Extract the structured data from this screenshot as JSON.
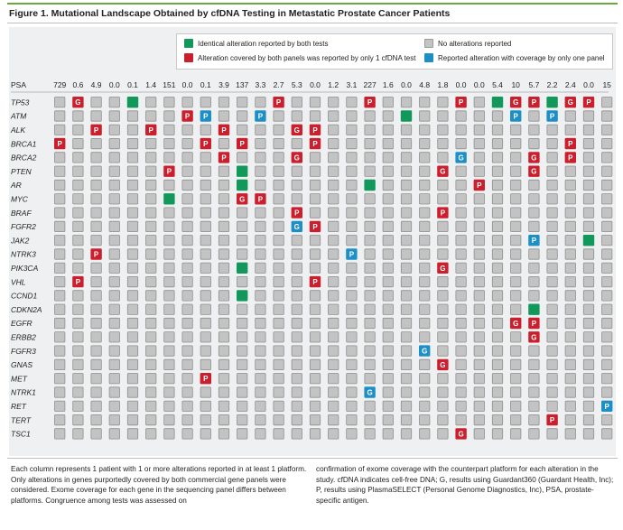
{
  "figure": {
    "title": "Figure 1. Mutational Landscape Obtained by cfDNA Testing in Metastatic Prostate Cancer Patients"
  },
  "legend": [
    {
      "code": "green",
      "label": "Identical alteration reported by both tests"
    },
    {
      "code": "gray",
      "label": "No alterations reported"
    },
    {
      "code": "red",
      "label": "Alteration covered by both panels was reported by only 1 cfDNA test"
    },
    {
      "code": "blue",
      "label": "Reported alteration with coverage by only one panel"
    }
  ],
  "colors": {
    "green": "#12985a",
    "red": "#cc1f2d",
    "blue": "#1e8fc6",
    "gray": "#c3c3c3",
    "gray_border": "#8f8f8f",
    "accent": "#6aaa3c",
    "panel_bg": "#eef0f1"
  },
  "chart_data": {
    "type": "heatmap",
    "row_header": "PSA",
    "psa": [
      "729",
      "0.6",
      "4.9",
      "0.0",
      "0.1",
      "1.4",
      "151",
      "0.0",
      "0.1",
      "3.9",
      "137",
      "3.3",
      "2.7",
      "5.3",
      "0.0",
      "1.2",
      "3.1",
      "227",
      "1.6",
      "0.0",
      "4.8",
      "1.8",
      "0.0",
      "0.0",
      "5.4",
      "10",
      "5.7",
      "2.2",
      "2.4",
      "0.0",
      "15"
    ],
    "genes": [
      "TP53",
      "ATM",
      "ALK",
      "BRCA1",
      "BRCA2",
      "PTEN",
      "AR",
      "MYC",
      "BRAF",
      "FGFR2",
      "JAK2",
      "NTRK3",
      "PIK3CA",
      "VHL",
      "CCND1",
      "CDKN2A",
      "EGFR",
      "ERBB2",
      "FGFR3",
      "GNAS",
      "MET",
      "NTRK1",
      "RET",
      "TERT",
      "TSC1"
    ],
    "cell_types": {
      "green": "Identical alteration reported by both tests",
      "red_G": "Reported only by Guardant360 (G)",
      "red_P": "Reported only by PlasmaSELECT (P)",
      "blue_G": "Coverage by only one panel, Guardant360 (G)",
      "blue_P": "Coverage by only one panel, PlasmaSELECT (P)",
      "gray": "No alterations reported"
    },
    "alterations": [
      {
        "gene": "TP53",
        "col": 1,
        "type": "red",
        "label": "G"
      },
      {
        "gene": "TP53",
        "col": 4,
        "type": "green",
        "label": ""
      },
      {
        "gene": "TP53",
        "col": 12,
        "type": "red",
        "label": "P"
      },
      {
        "gene": "TP53",
        "col": 17,
        "type": "red",
        "label": "P"
      },
      {
        "gene": "TP53",
        "col": 22,
        "type": "red",
        "label": "P"
      },
      {
        "gene": "TP53",
        "col": 24,
        "type": "green",
        "label": ""
      },
      {
        "gene": "TP53",
        "col": 25,
        "type": "red",
        "label": "G"
      },
      {
        "gene": "TP53",
        "col": 26,
        "type": "red",
        "label": "P"
      },
      {
        "gene": "TP53",
        "col": 27,
        "type": "green",
        "label": ""
      },
      {
        "gene": "TP53",
        "col": 28,
        "type": "red",
        "label": "G"
      },
      {
        "gene": "TP53",
        "col": 29,
        "type": "red",
        "label": "P"
      },
      {
        "gene": "ATM",
        "col": 7,
        "type": "red",
        "label": "P"
      },
      {
        "gene": "ATM",
        "col": 8,
        "type": "blue",
        "label": "P"
      },
      {
        "gene": "ATM",
        "col": 11,
        "type": "blue",
        "label": "P"
      },
      {
        "gene": "ATM",
        "col": 19,
        "type": "green",
        "label": ""
      },
      {
        "gene": "ATM",
        "col": 25,
        "type": "blue",
        "label": "P"
      },
      {
        "gene": "ATM",
        "col": 27,
        "type": "blue",
        "label": "P"
      },
      {
        "gene": "ALK",
        "col": 2,
        "type": "red",
        "label": "P"
      },
      {
        "gene": "ALK",
        "col": 5,
        "type": "red",
        "label": "P"
      },
      {
        "gene": "ALK",
        "col": 9,
        "type": "red",
        "label": "P"
      },
      {
        "gene": "ALK",
        "col": 13,
        "type": "red",
        "label": "G"
      },
      {
        "gene": "ALK",
        "col": 14,
        "type": "red",
        "label": "P"
      },
      {
        "gene": "BRCA1",
        "col": 0,
        "type": "red",
        "label": "P"
      },
      {
        "gene": "BRCA1",
        "col": 8,
        "type": "red",
        "label": "P"
      },
      {
        "gene": "BRCA1",
        "col": 10,
        "type": "red",
        "label": "P"
      },
      {
        "gene": "BRCA1",
        "col": 14,
        "type": "red",
        "label": "P"
      },
      {
        "gene": "BRCA1",
        "col": 28,
        "type": "red",
        "label": "P"
      },
      {
        "gene": "BRCA2",
        "col": 9,
        "type": "red",
        "label": "P"
      },
      {
        "gene": "BRCA2",
        "col": 13,
        "type": "red",
        "label": "G"
      },
      {
        "gene": "BRCA2",
        "col": 22,
        "type": "blue",
        "label": "G"
      },
      {
        "gene": "BRCA2",
        "col": 26,
        "type": "red",
        "label": "G"
      },
      {
        "gene": "BRCA2",
        "col": 28,
        "type": "red",
        "label": "P"
      },
      {
        "gene": "PTEN",
        "col": 6,
        "type": "red",
        "label": "P"
      },
      {
        "gene": "PTEN",
        "col": 10,
        "type": "green",
        "label": ""
      },
      {
        "gene": "PTEN",
        "col": 21,
        "type": "red",
        "label": "G"
      },
      {
        "gene": "PTEN",
        "col": 26,
        "type": "red",
        "label": "G"
      },
      {
        "gene": "AR",
        "col": 10,
        "type": "green",
        "label": ""
      },
      {
        "gene": "AR",
        "col": 17,
        "type": "green",
        "label": ""
      },
      {
        "gene": "AR",
        "col": 23,
        "type": "red",
        "label": "P"
      },
      {
        "gene": "MYC",
        "col": 6,
        "type": "green",
        "label": ""
      },
      {
        "gene": "MYC",
        "col": 10,
        "type": "red",
        "label": "G"
      },
      {
        "gene": "MYC",
        "col": 11,
        "type": "red",
        "label": "P"
      },
      {
        "gene": "BRAF",
        "col": 13,
        "type": "red",
        "label": "P"
      },
      {
        "gene": "BRAF",
        "col": 21,
        "type": "red",
        "label": "P"
      },
      {
        "gene": "FGFR2",
        "col": 13,
        "type": "blue",
        "label": "G"
      },
      {
        "gene": "FGFR2",
        "col": 14,
        "type": "red",
        "label": "P"
      },
      {
        "gene": "JAK2",
        "col": 26,
        "type": "blue",
        "label": "P"
      },
      {
        "gene": "JAK2",
        "col": 29,
        "type": "green",
        "label": ""
      },
      {
        "gene": "NTRK3",
        "col": 2,
        "type": "red",
        "label": "P"
      },
      {
        "gene": "NTRK3",
        "col": 16,
        "type": "blue",
        "label": "P"
      },
      {
        "gene": "PIK3CA",
        "col": 10,
        "type": "green",
        "label": ""
      },
      {
        "gene": "PIK3CA",
        "col": 21,
        "type": "red",
        "label": "G"
      },
      {
        "gene": "VHL",
        "col": 1,
        "type": "red",
        "label": "P"
      },
      {
        "gene": "VHL",
        "col": 14,
        "type": "red",
        "label": "P"
      },
      {
        "gene": "CCND1",
        "col": 10,
        "type": "green",
        "label": ""
      },
      {
        "gene": "CDKN2A",
        "col": 26,
        "type": "green",
        "label": ""
      },
      {
        "gene": "EGFR",
        "col": 25,
        "type": "red",
        "label": "G"
      },
      {
        "gene": "EGFR",
        "col": 26,
        "type": "red",
        "label": "P"
      },
      {
        "gene": "ERBB2",
        "col": 26,
        "type": "red",
        "label": "G"
      },
      {
        "gene": "FGFR3",
        "col": 20,
        "type": "blue",
        "label": "G"
      },
      {
        "gene": "GNAS",
        "col": 21,
        "type": "red",
        "label": "G"
      },
      {
        "gene": "MET",
        "col": 8,
        "type": "red",
        "label": "P"
      },
      {
        "gene": "NTRK1",
        "col": 17,
        "type": "blue",
        "label": "G"
      },
      {
        "gene": "RET",
        "col": 30,
        "type": "blue",
        "label": "P"
      },
      {
        "gene": "TERT",
        "col": 27,
        "type": "red",
        "label": "P"
      },
      {
        "gene": "TSC1",
        "col": 22,
        "type": "red",
        "label": "G"
      }
    ]
  },
  "caption": {
    "left": "Each column represents 1 patient with 1 or more alterations reported in at least 1 platform. Only alterations in genes purportedly covered by both commercial gene panels were considered. Exome coverage for each gene in the sequencing panel differs between platforms. Congruence among tests was assessed on",
    "right": "confirmation of exome coverage with the counterpart platform for each alteration in the study. cfDNA indicates cell-free DNA; G, results using Guardant360 (Guardant Health, Inc); P, results using PlasmaSELECT (Personal Genome Diagnostics, Inc), PSA, prostate-specific antigen."
  }
}
